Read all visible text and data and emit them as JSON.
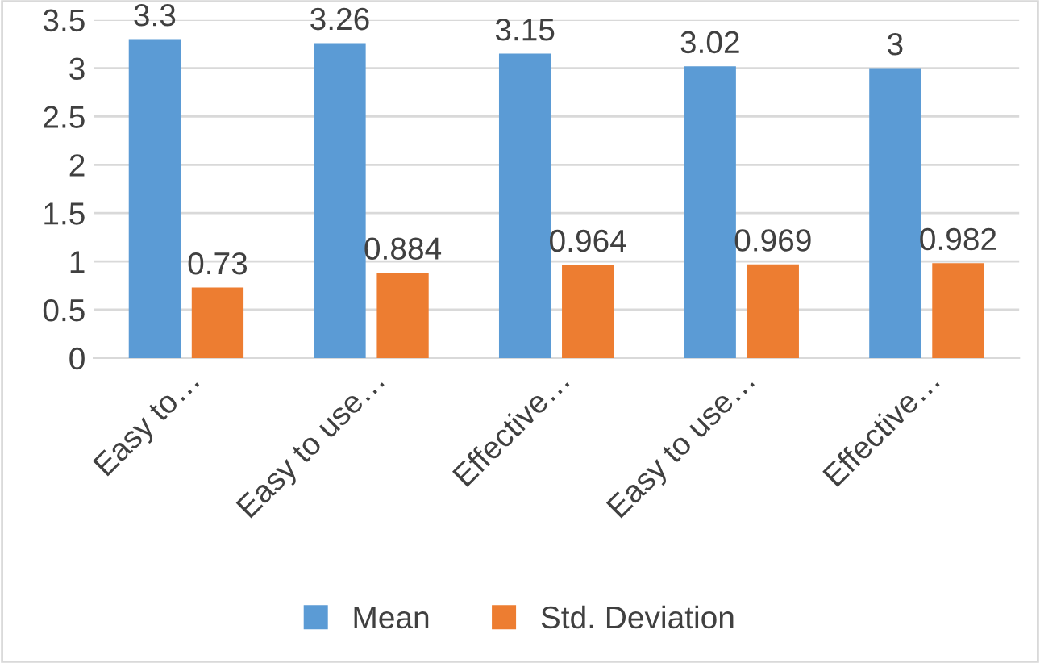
{
  "chart_data": {
    "type": "bar",
    "categories": [
      "Easy to…",
      "Easy to use…",
      "Effective…",
      "Easy to use…",
      "Effective…"
    ],
    "series": [
      {
        "name": "Mean",
        "color": "#5b9bd5",
        "values": [
          3.3,
          3.26,
          3.15,
          3.02,
          3
        ]
      },
      {
        "name": "Std. Deviation",
        "color": "#ed7d31",
        "values": [
          0.73,
          0.884,
          0.964,
          0.969,
          0.982
        ]
      }
    ],
    "ylim": [
      0,
      3.5
    ],
    "yticks": [
      0,
      0.5,
      1,
      1.5,
      2,
      2.5,
      3,
      3.5
    ],
    "grid": "y",
    "legend": "bottom",
    "data_labels": true
  }
}
